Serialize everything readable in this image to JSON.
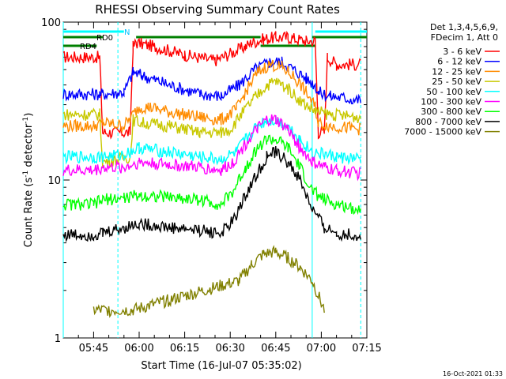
{
  "chart_data": {
    "type": "line",
    "title": "RHESSI Observing Summary Count Rates",
    "xlabel": "Start Time (16-Jul-07 05:35:02)",
    "ylabel": "Count Rate (s",
    "ylabel_sup": "-1",
    "ylabel_tail": " detector",
    "ylabel_sup2": "-1",
    "ylabel_end": ")",
    "y_scale": "log",
    "ylim": [
      1,
      100
    ],
    "xlim_minutes": [
      0,
      100
    ],
    "x_ticks": [
      {
        "minute": 10,
        "label": "05:45"
      },
      {
        "minute": 25,
        "label": "06:00"
      },
      {
        "minute": 40,
        "label": "06:15"
      },
      {
        "minute": 55,
        "label": "06:30"
      },
      {
        "minute": 70,
        "label": "06:45"
      },
      {
        "minute": 85,
        "label": "07:00"
      },
      {
        "minute": 100,
        "label": "07:15"
      }
    ],
    "y_ticks": [
      {
        "value": 1,
        "label": "1"
      },
      {
        "value": 10,
        "label": "10"
      },
      {
        "value": 100,
        "label": "100"
      }
    ],
    "legend_header": [
      "Det 1,3,4,5,6,9,",
      "FDecim 1, Att 0"
    ],
    "legend_placement": "right",
    "series": [
      {
        "name": "3 - 6 keV",
        "color": "#ff0000",
        "points": [
          [
            0,
            60
          ],
          [
            12,
            60
          ],
          [
            13,
            20
          ],
          [
            22,
            20
          ],
          [
            23,
            70
          ],
          [
            24,
            74
          ],
          [
            30,
            70
          ],
          [
            40,
            62
          ],
          [
            50,
            57
          ],
          [
            60,
            70
          ],
          [
            62,
            74
          ],
          [
            66,
            78
          ],
          [
            70,
            80
          ],
          [
            74,
            80
          ],
          [
            80,
            76
          ],
          [
            83,
            76
          ],
          [
            84,
            20
          ],
          [
            86,
            20
          ],
          [
            87,
            60
          ],
          [
            90,
            54
          ],
          [
            98,
            54
          ]
        ]
      },
      {
        "name": "6 - 12 keV",
        "color": "#0000ff",
        "points": [
          [
            0,
            35
          ],
          [
            12,
            35
          ],
          [
            13,
            35
          ],
          [
            20,
            36
          ],
          [
            23,
            48
          ],
          [
            26,
            46
          ],
          [
            35,
            40
          ],
          [
            45,
            35
          ],
          [
            52,
            34
          ],
          [
            58,
            40
          ],
          [
            63,
            50
          ],
          [
            68,
            56
          ],
          [
            72,
            56
          ],
          [
            76,
            50
          ],
          [
            80,
            44
          ],
          [
            83,
            40
          ],
          [
            84,
            36
          ],
          [
            88,
            34
          ],
          [
            98,
            32
          ]
        ]
      },
      {
        "name": "12 - 25 keV",
        "color": "#ff8c00",
        "points": [
          [
            0,
            22
          ],
          [
            10,
            22
          ],
          [
            13,
            23
          ],
          [
            20,
            22
          ],
          [
            25,
            29
          ],
          [
            28,
            29
          ],
          [
            35,
            27
          ],
          [
            45,
            25
          ],
          [
            52,
            24
          ],
          [
            57,
            28
          ],
          [
            60,
            36
          ],
          [
            64,
            48
          ],
          [
            68,
            54
          ],
          [
            72,
            52
          ],
          [
            76,
            45
          ],
          [
            80,
            36
          ],
          [
            83,
            29
          ],
          [
            84,
            23
          ],
          [
            88,
            22
          ],
          [
            98,
            21
          ]
        ]
      },
      {
        "name": "25 - 50 keV",
        "color": "#c8c800",
        "points": [
          [
            0,
            26
          ],
          [
            12,
            26
          ],
          [
            13,
            13
          ],
          [
            22,
            14
          ],
          [
            23,
            24
          ],
          [
            26,
            23
          ],
          [
            35,
            22
          ],
          [
            45,
            20
          ],
          [
            52,
            20
          ],
          [
            55,
            21
          ],
          [
            58,
            25
          ],
          [
            63,
            33
          ],
          [
            67,
            40
          ],
          [
            70,
            42
          ],
          [
            74,
            38
          ],
          [
            78,
            32
          ],
          [
            82,
            28
          ],
          [
            84,
            27
          ],
          [
            88,
            26
          ],
          [
            98,
            25
          ]
        ]
      },
      {
        "name": "50 - 100 keV",
        "color": "#00ffff",
        "points": [
          [
            0,
            14
          ],
          [
            10,
            14
          ],
          [
            13,
            14
          ],
          [
            20,
            14.5
          ],
          [
            25,
            16
          ],
          [
            35,
            15
          ],
          [
            45,
            14
          ],
          [
            52,
            13.5
          ],
          [
            57,
            15
          ],
          [
            60,
            18
          ],
          [
            64,
            22
          ],
          [
            67,
            24
          ],
          [
            70,
            24
          ],
          [
            74,
            22
          ],
          [
            78,
            18
          ],
          [
            82,
            15
          ],
          [
            86,
            14.5
          ],
          [
            90,
            14
          ],
          [
            98,
            13.5
          ]
        ]
      },
      {
        "name": "100 - 300 keV",
        "color": "#ff00ff",
        "points": [
          [
            0,
            11.5
          ],
          [
            10,
            11.5
          ],
          [
            13,
            12
          ],
          [
            20,
            12
          ],
          [
            25,
            13
          ],
          [
            35,
            12.5
          ],
          [
            45,
            12
          ],
          [
            52,
            11.5
          ],
          [
            56,
            13
          ],
          [
            60,
            17
          ],
          [
            64,
            21
          ],
          [
            67,
            24
          ],
          [
            70,
            24
          ],
          [
            74,
            21
          ],
          [
            78,
            16
          ],
          [
            82,
            13
          ],
          [
            86,
            12
          ],
          [
            90,
            11.5
          ],
          [
            98,
            11
          ]
        ]
      },
      {
        "name": "300 - 800 keV",
        "color": "#00ff00",
        "points": [
          [
            0,
            7
          ],
          [
            10,
            7
          ],
          [
            13,
            7.5
          ],
          [
            20,
            7.7
          ],
          [
            25,
            8
          ],
          [
            35,
            7.8
          ],
          [
            45,
            7.5
          ],
          [
            52,
            7
          ],
          [
            56,
            8.5
          ],
          [
            60,
            12
          ],
          [
            64,
            16
          ],
          [
            67,
            18
          ],
          [
            70,
            18
          ],
          [
            74,
            16
          ],
          [
            78,
            12
          ],
          [
            82,
            8.5
          ],
          [
            86,
            7.5
          ],
          [
            90,
            7
          ],
          [
            98,
            6.5
          ]
        ]
      },
      {
        "name": "800 - 7000 keV",
        "color": "#000000",
        "points": [
          [
            0,
            4.5
          ],
          [
            10,
            4.5
          ],
          [
            13,
            4.6
          ],
          [
            20,
            5
          ],
          [
            25,
            5.3
          ],
          [
            35,
            5
          ],
          [
            45,
            4.8
          ],
          [
            52,
            4.6
          ],
          [
            56,
            5.5
          ],
          [
            60,
            8
          ],
          [
            64,
            11
          ],
          [
            67,
            14
          ],
          [
            70,
            15
          ],
          [
            74,
            13
          ],
          [
            78,
            10
          ],
          [
            82,
            6.5
          ],
          [
            86,
            5
          ],
          [
            90,
            4.6
          ],
          [
            98,
            4.4
          ]
        ]
      },
      {
        "name": "7000 - 15000 keV",
        "color": "#808000",
        "points": [
          [
            10,
            1.5
          ],
          [
            23,
            1.5
          ],
          [
            58,
            2.3
          ],
          [
            62,
            2.9
          ],
          [
            66,
            3.4
          ],
          [
            70,
            3.5
          ],
          [
            74,
            3.2
          ],
          [
            78,
            2.8
          ],
          [
            82,
            2.3
          ],
          [
            86,
            1.5
          ]
        ]
      }
    ],
    "vertical_lines": [
      {
        "minute": 0,
        "style": "solid",
        "color": "#00ffff"
      },
      {
        "minute": 18,
        "style": "dashed",
        "color": "#00ffff"
      },
      {
        "minute": 82,
        "style": "solid",
        "color": "#00ffff"
      },
      {
        "minute": 98,
        "style": "dashed",
        "color": "#00ffff"
      }
    ],
    "annotation_bars": [
      {
        "label": "N",
        "color": "#00ffff",
        "segments": [
          [
            0,
            20
          ],
          [
            83,
            100
          ]
        ]
      },
      {
        "label": "RD0",
        "color": "#008000",
        "segments": [
          [
            0,
            13
          ],
          [
            24,
            65
          ],
          [
            82,
            100
          ]
        ]
      },
      {
        "label": "RD4",
        "color": "#008000",
        "segments": [
          [
            0,
            11
          ],
          [
            65,
            83
          ]
        ]
      }
    ],
    "footer_date": "16-Oct-2021 01:33"
  }
}
